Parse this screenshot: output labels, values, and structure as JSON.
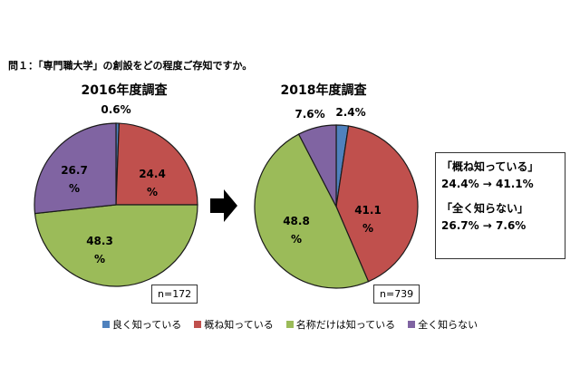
{
  "question": "問１：「専門職大学」の創設をどの程度ご存知ですか。",
  "colors": {
    "good": "#4f81bd",
    "mostly": "#c0504d",
    "name_only": "#9bbb59",
    "none": "#8064a2"
  },
  "chart_data": [
    {
      "type": "pie",
      "title": "2016年度調査",
      "n_label": "n=172",
      "slices": [
        {
          "name": "良く知っている",
          "value": 0.6,
          "label": "0.6%",
          "color": "#4f81bd"
        },
        {
          "name": "概ね知っている",
          "value": 24.4,
          "label": "24.4\n%",
          "color": "#c0504d"
        },
        {
          "name": "名称だけは知っている",
          "value": 48.3,
          "label": "48.3\n%",
          "color": "#9bbb59"
        },
        {
          "name": "全く知らない",
          "value": 26.7,
          "label": "26.7\n%",
          "color": "#8064a2"
        }
      ]
    },
    {
      "type": "pie",
      "title": "2018年度調査",
      "n_label": "n=739",
      "slices": [
        {
          "name": "良く知っている",
          "value": 2.4,
          "label": "2.4%",
          "color": "#4f81bd"
        },
        {
          "name": "概ね知っている",
          "value": 41.1,
          "label": "41.1\n%",
          "color": "#c0504d"
        },
        {
          "name": "名称だけは知っている",
          "value": 48.8,
          "label": "48.8\n%",
          "color": "#9bbb59"
        },
        {
          "name": "全く知らない",
          "value": 7.6,
          "label": "7.6%",
          "color": "#8064a2"
        }
      ]
    }
  ],
  "legend": [
    {
      "label": "良く知っている",
      "color": "#4f81bd"
    },
    {
      "label": "概ね知っている",
      "color": "#c0504d"
    },
    {
      "label": "名称だけは知っている",
      "color": "#9bbb59"
    },
    {
      "label": "全く知らない",
      "color": "#8064a2"
    }
  ],
  "summary": {
    "mostly_heading": "「概ね知っている」",
    "mostly_change": "24.4% → 41.1%",
    "none_heading": "「全く知らない」",
    "none_change": "26.7% → 7.6%"
  }
}
